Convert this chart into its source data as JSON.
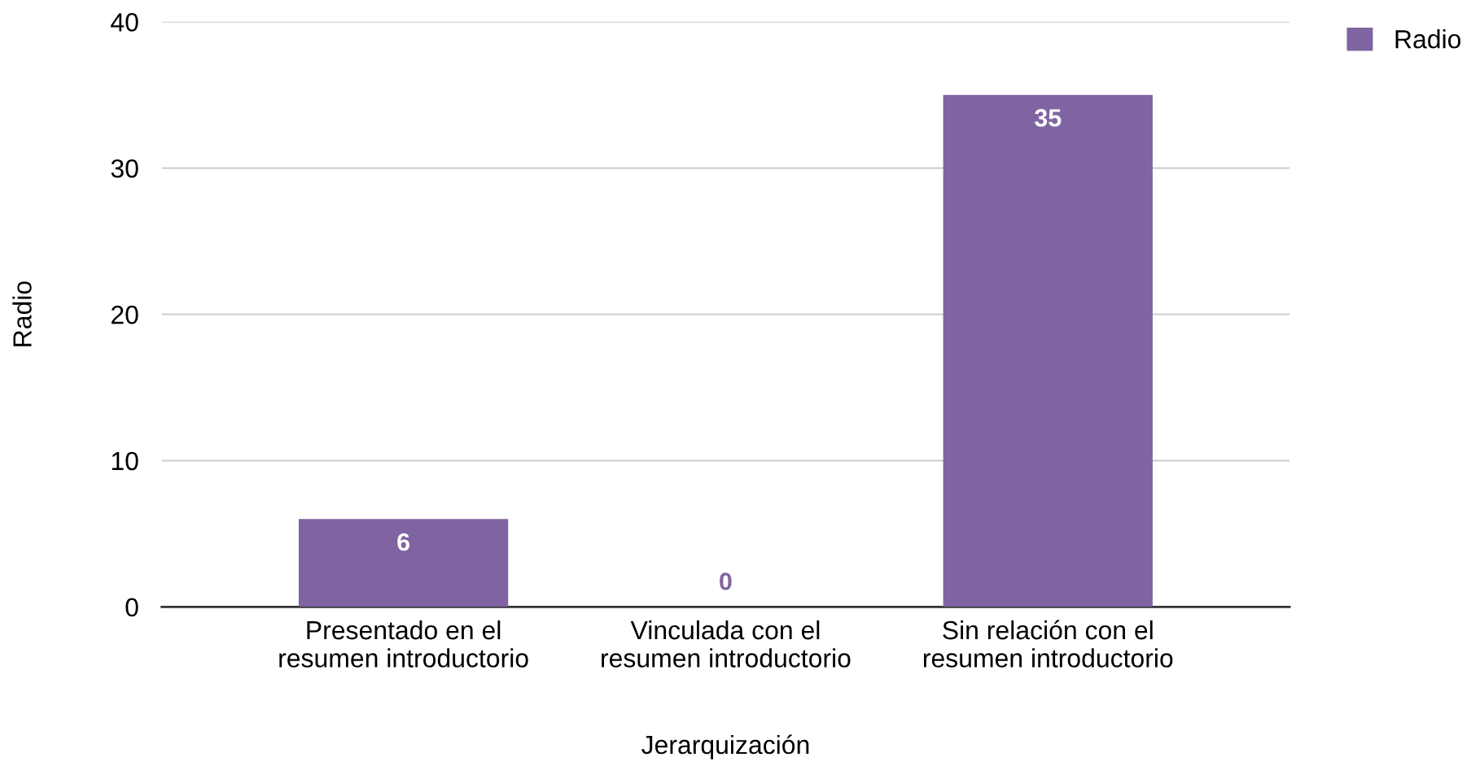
{
  "chart_data": {
    "type": "bar",
    "xlabel": "Jerarquización",
    "ylabel": "Radio",
    "categories": [
      "Presentado en el\nresumen introductorio",
      "Vinculada con el\nresumen introductorio",
      "Sin relación con el\nresumen introductorio"
    ],
    "series": [
      {
        "name": "Radio",
        "color": "#8064a2",
        "values": [
          6,
          0,
          35
        ]
      }
    ],
    "ylim": [
      0,
      40
    ],
    "yticks": [
      0,
      10,
      20,
      30,
      40
    ],
    "grid": "y",
    "legend": "top right",
    "data_labels": true
  }
}
